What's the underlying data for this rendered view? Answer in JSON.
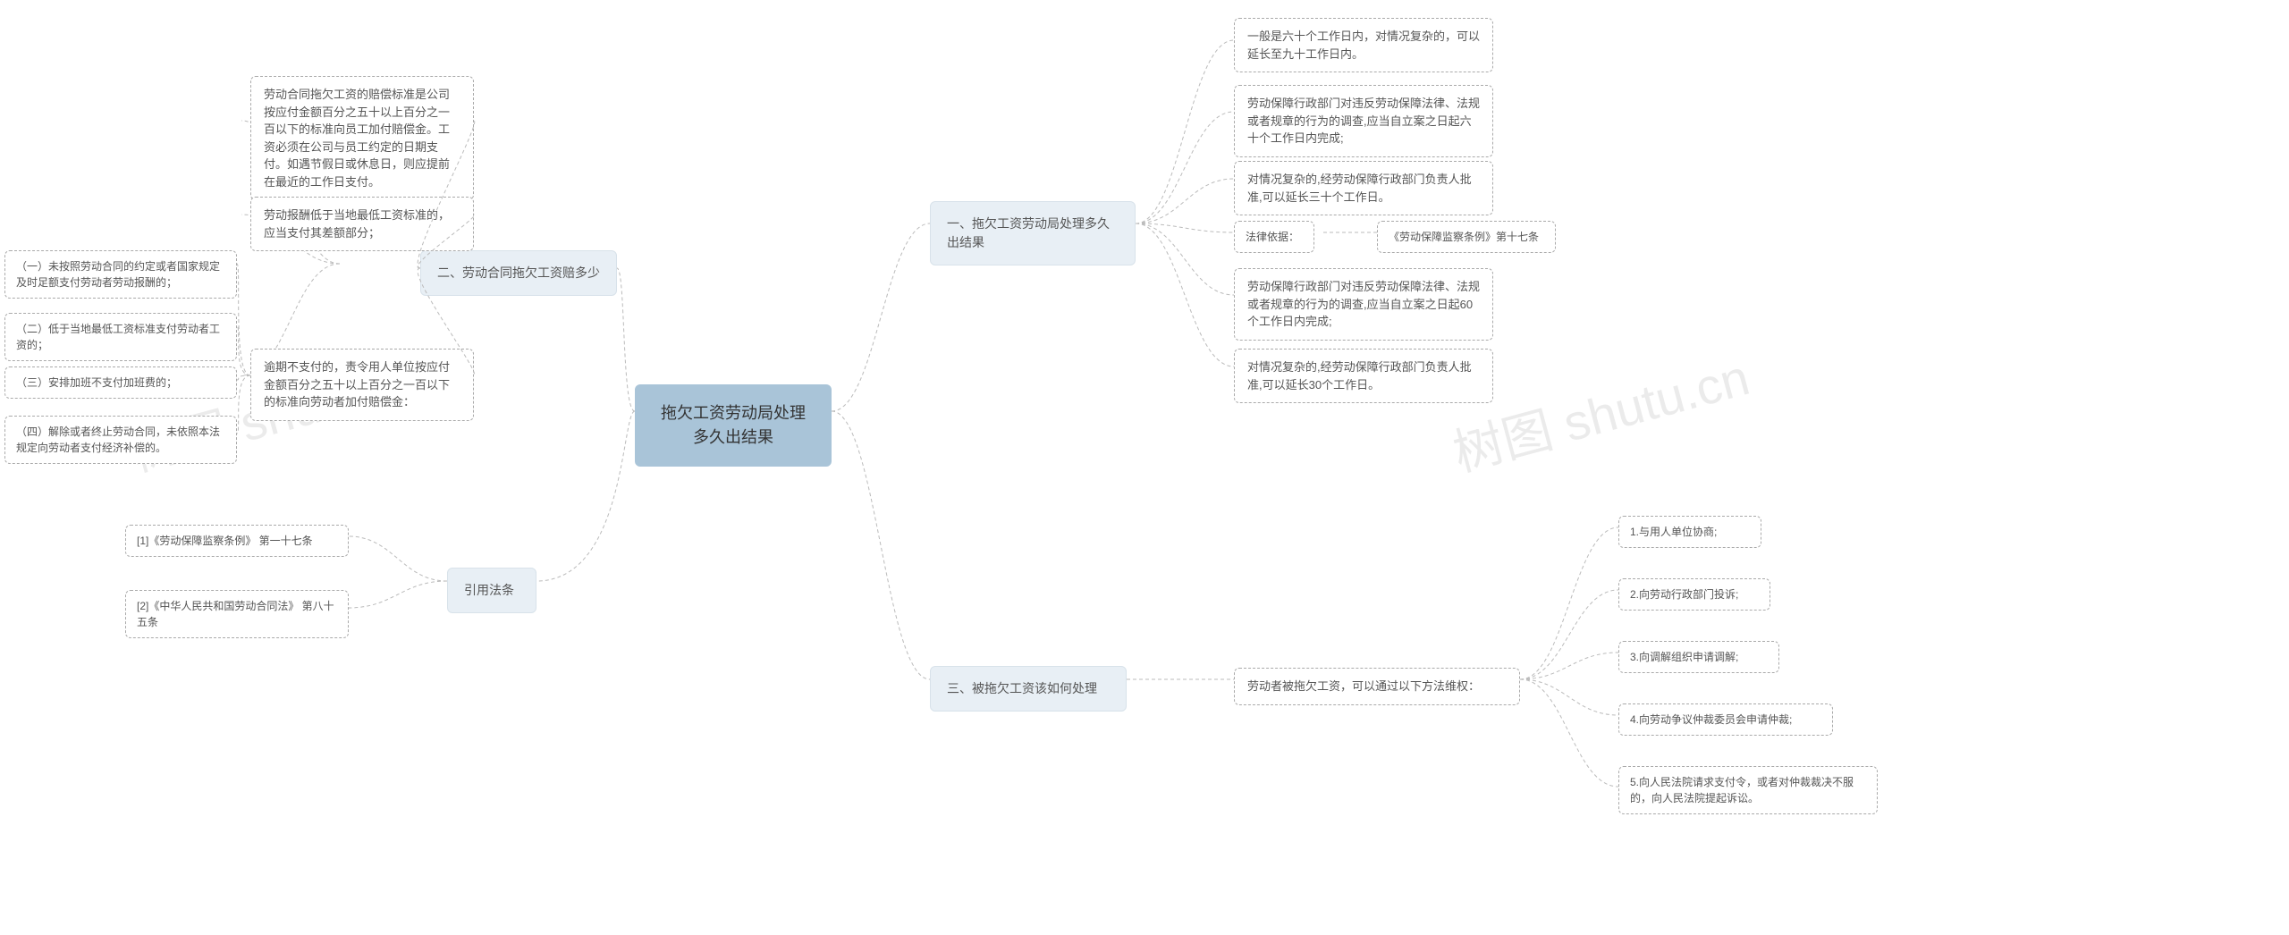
{
  "watermark": "树图 shutu.cn",
  "colors": {
    "root_bg": "#a9c4d8",
    "branch_bg": "#e8eff5",
    "leaf_border": "#aaaaaa",
    "connector": "#bbbbbb",
    "text": "#555555",
    "background": "#ffffff"
  },
  "root": {
    "title": "拖欠工资劳动局处理多久出结果"
  },
  "right": {
    "b1": {
      "label": "一、拖欠工资劳动局处理多久出结果",
      "c1": "一般是六十个工作日内，对情况复杂的，可以延长至九十工作日内。",
      "c2": "劳动保障行政部门对违反劳动保障法律、法规或者规章的行为的调查,应当自立案之日起六十个工作日内完成;",
      "c3": "对情况复杂的,经劳动保障行政部门负责人批准,可以延长三十个工作日。",
      "c4": "法律依据：",
      "c4b": "《劳动保障监察条例》第十七条",
      "c5": "劳动保障行政部门对违反劳动保障法律、法规或者规章的行为的调查,应当自立案之日起60个工作日内完成;",
      "c6": "对情况复杂的,经劳动保障行政部门负责人批准,可以延长30个工作日。"
    },
    "b3": {
      "label": "三、被拖欠工资该如何处理",
      "c1": "劳动者被拖欠工资，可以通过以下方法维权：",
      "d1": "1.与用人单位协商;",
      "d2": "2.向劳动行政部门投诉;",
      "d3": "3.向调解组织申请调解;",
      "d4": "4.向劳动争议仲裁委员会申请仲裁;",
      "d5": "5.向人民法院请求支付令，或者对仲裁裁决不服的，向人民法院提起诉讼。"
    }
  },
  "left": {
    "b2": {
      "label": "二、劳动合同拖欠工资赔多少",
      "c1": "劳动合同拖欠工资的赔偿标准是公司按应付金额百分之五十以上百分之一百以下的标准向员工加付赔偿金。工资必须在公司与员工约定的日期支付。如遇节假日或休息日，则应提前在最近的工作日支付。",
      "c2": "劳动报酬低于当地最低工资标准的，应当支付其差额部分；",
      "c3": "逾期不支付的，责令用人单位按应付金额百分之五十以上百分之一百以下的标准向劳动者加付赔偿金：",
      "d1": "（一）未按照劳动合同的约定或者国家规定及时足额支付劳动者劳动报酬的；",
      "d2": "（二）低于当地最低工资标准支付劳动者工资的；",
      "d3": "（三）安排加班不支付加班费的；",
      "d4": "（四）解除或者终止劳动合同，未依照本法规定向劳动者支付经济补偿的。"
    },
    "bLaw": {
      "label": "引用法条",
      "c1": "[1]《劳动保障监察条例》 第一十七条",
      "c2": "[2]《中华人民共和国劳动合同法》 第八十五条"
    }
  }
}
